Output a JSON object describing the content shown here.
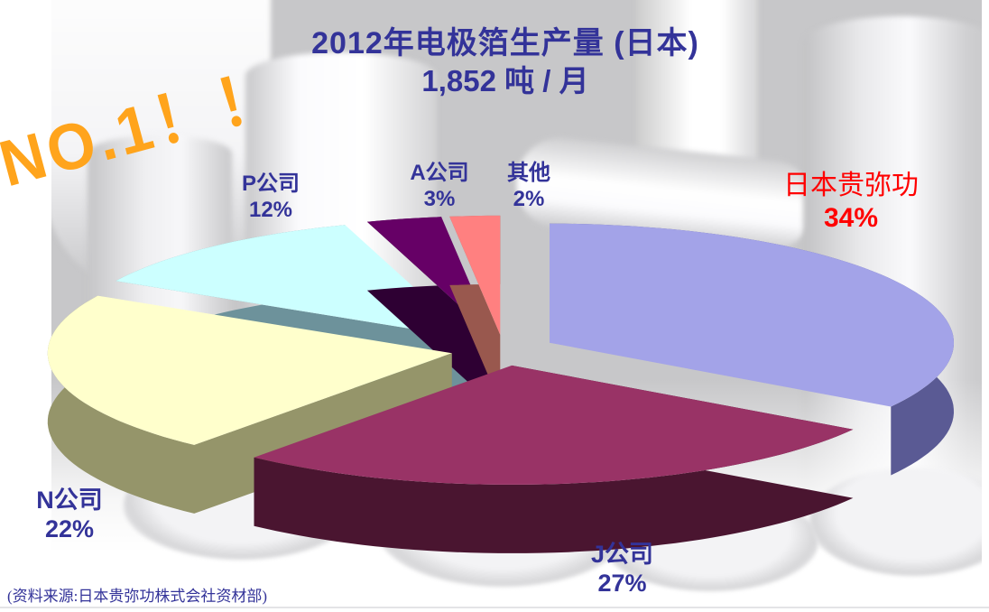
{
  "chart_data": {
    "type": "pie",
    "style": "3d-exploded",
    "title": "2012年电极箔生产量 (日本)",
    "subtitle": "1,852 吨 / 月",
    "annotation": "NO.1！！",
    "source": "(资料来源:日本贵弥功株式会社资材部)",
    "legend_position": "none",
    "slices": [
      {
        "label": "日本贵弥功",
        "value": 34,
        "pct_label": "34%",
        "color": "#a3a3e8",
        "side_color": "#5a5a94",
        "label_color": "#ff0000"
      },
      {
        "label": "J公司",
        "value": 27,
        "pct_label": "27%",
        "color": "#993366",
        "side_color": "#4a1530",
        "label_color": "#333399"
      },
      {
        "label": "N公司",
        "value": 22,
        "pct_label": "22%",
        "color": "#ffffcc",
        "side_color": "#95956a",
        "label_color": "#333399"
      },
      {
        "label": "P公司",
        "value": 12,
        "pct_label": "12%",
        "color": "#ccffff",
        "side_color": "#6d929b",
        "label_color": "#333399"
      },
      {
        "label": "A公司",
        "value": 3,
        "pct_label": "3%",
        "color": "#660066",
        "side_color": "#2e0033",
        "label_color": "#333399"
      },
      {
        "label": "其他",
        "value": 2,
        "pct_label": "2%",
        "color": "#ff8080",
        "side_color": "#99584e",
        "label_color": "#333399"
      }
    ],
    "accent_colors": {
      "title": "#333399",
      "annotation": "#ffa41c",
      "highlight": "#ff0000"
    }
  }
}
